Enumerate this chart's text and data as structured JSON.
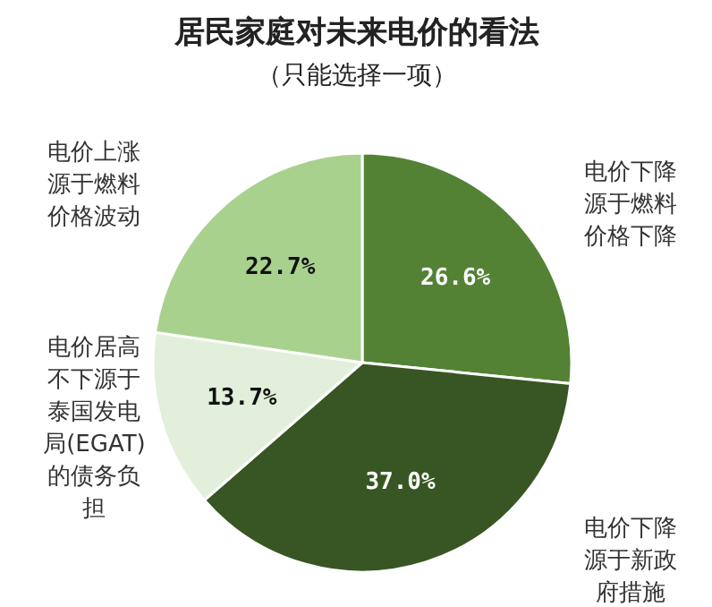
{
  "chart_data": {
    "type": "pie",
    "title": "居民家庭对未来电价的看法",
    "subtitle": "（只能选择一项）",
    "categories": [
      "电价下降源于燃料价格下降",
      "电价下降源于新政府措施",
      "电价居高不下源于泰国发电局(EGAT)的债务负担",
      "电价上涨源于燃料价格波动"
    ],
    "values": [
      26.6,
      37.0,
      13.7,
      22.7
    ],
    "colors": [
      "#548235",
      "#375623",
      "#e2efda",
      "#a9d18e"
    ],
    "value_labels": [
      "26.6%",
      "37.0%",
      "13.7%",
      "22.7%"
    ]
  }
}
